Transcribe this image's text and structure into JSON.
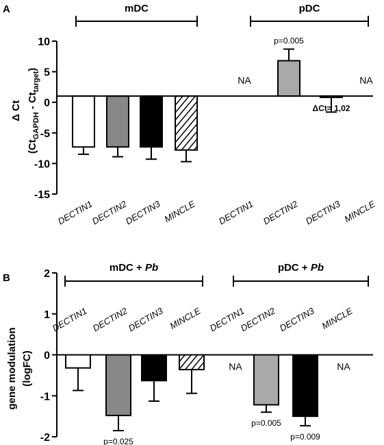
{
  "chart_data": [
    {
      "panel": "A",
      "type": "bar",
      "ylim": [
        -15,
        10
      ],
      "yticks": [
        10,
        5,
        0,
        -5,
        -10,
        -15
      ],
      "ylabel_line1": "Δ Ct",
      "ylabel_line2": {
        "a": "(Ct",
        "a_sub": "GAPDH",
        "b": " - Ct",
        "b_sub": "target",
        "c": ")"
      },
      "reference_line": 1.02,
      "groups": [
        {
          "label": "mDC",
          "categories": [
            "DECTIN1",
            "DECTIN2",
            "DECTIN3",
            "MINCLE"
          ],
          "values": [
            -7.3,
            -7.3,
            -7.3,
            -7.8
          ],
          "errors": [
            1.2,
            1.6,
            2.0,
            1.9
          ],
          "fills": [
            "#ffffff",
            "#888888",
            "#000000",
            "hatch"
          ],
          "annotations": [
            "",
            "",
            "",
            ""
          ]
        },
        {
          "label": "pDC",
          "categories": [
            "DECTIN1",
            "DECTIN2",
            "DECTIN3",
            "MINCLE"
          ],
          "values": [
            null,
            6.8,
            0.8,
            null
          ],
          "errors": [
            0,
            1.9,
            2.4,
            0
          ],
          "fills": [
            "",
            "#a9a9a9",
            "#ffffff",
            ""
          ],
          "annotations": [
            "NA",
            "p=0.005",
            "ΔCt= 1,02",
            "NA"
          ]
        }
      ]
    },
    {
      "panel": "B",
      "type": "bar",
      "ylim": [
        -2,
        2
      ],
      "yticks": [
        2,
        1,
        0,
        -1,
        -2
      ],
      "ylabel_line1": "gene modulation",
      "ylabel_line2": "(logFC)",
      "groups": [
        {
          "label": "mDC + ",
          "label_italic": "Pb",
          "categories": [
            "DECTIN1",
            "DECTIN2",
            "DECTIN3",
            "MINCLE"
          ],
          "values": [
            -0.32,
            -1.48,
            -0.63,
            -0.36
          ],
          "errors": [
            0.55,
            0.37,
            0.5,
            0.58
          ],
          "fills": [
            "#ffffff",
            "#888888",
            "#000000",
            "hatch"
          ],
          "annotations": [
            "",
            "p=0.025",
            "",
            ""
          ]
        },
        {
          "label": "pDC + ",
          "label_italic": "Pb",
          "categories": [
            "DECTIN1",
            "DECTIN2",
            "DECTIN3",
            "MINCLE"
          ],
          "values": [
            null,
            -1.22,
            -1.5,
            null
          ],
          "errors": [
            0,
            0.18,
            0.23,
            0
          ],
          "fills": [
            "",
            "#a9a9a9",
            "#000000",
            ""
          ],
          "annotations": [
            "NA",
            "p=0.005",
            "p=0.009",
            "NA"
          ]
        }
      ]
    }
  ]
}
